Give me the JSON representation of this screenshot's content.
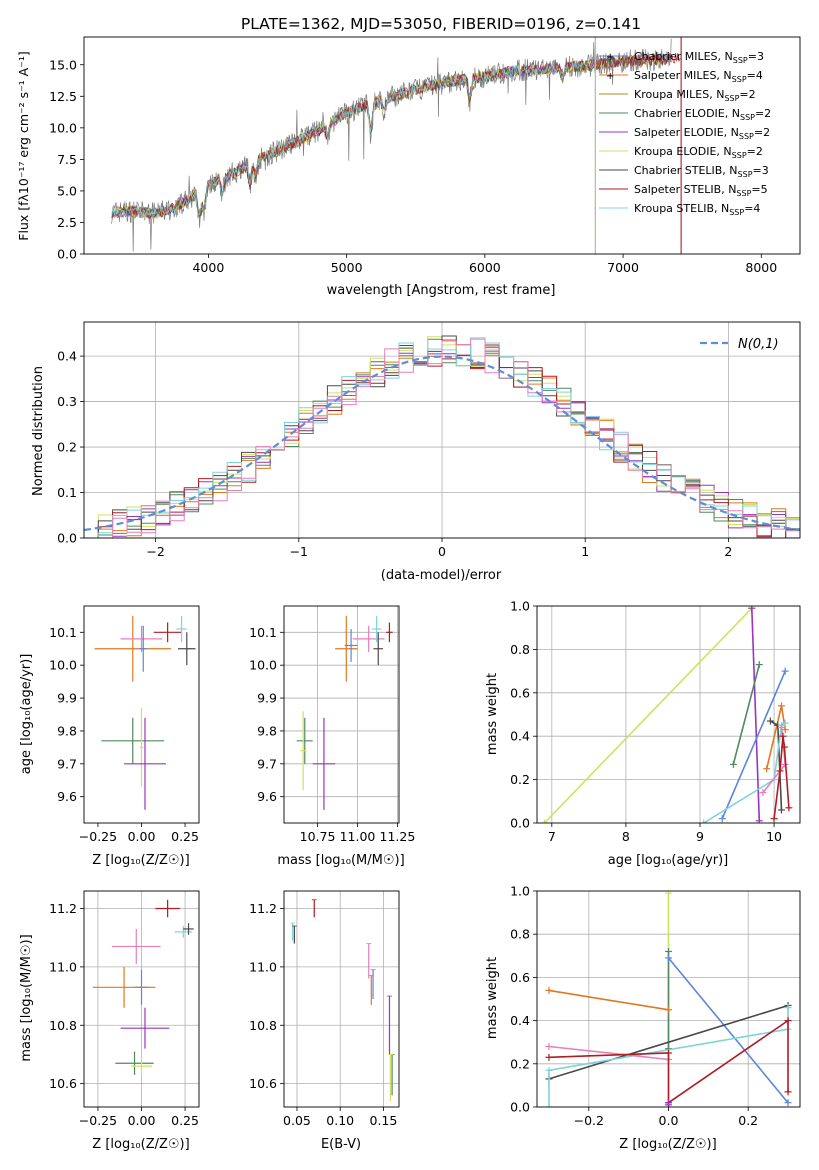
{
  "title": "PLATE=1362, MJD=53050, FIBERID=0196, z=0.141",
  "colors": {
    "Chabrier MILES": "#5a87d6",
    "Salpeter MILES": "#e07820",
    "Kroupa MILES": "#b58a1a",
    "Chabrier ELODIE": "#4f8a5a",
    "Salpeter ELODIE": "#9a34c0",
    "Kroupa ELODIE": "#cfe260",
    "Chabrier STELIB": "#4a4a4a",
    "Salpeter STELIB": "#b01c22",
    "Kroupa STELIB": "#7fd3dc",
    "Pink": "#e87fb8",
    "Normal": "#5a8fd8"
  },
  "chart_data": [
    {
      "id": "spectrum",
      "type": "line",
      "xlabel": "wavelength [Angstrom, rest frame]",
      "ylabel": "Flux [fλ10⁻¹⁷ erg cm⁻² s⁻¹ A⁻¹]",
      "xlim": [
        3100,
        8280
      ],
      "ylim": [
        0,
        17.2
      ],
      "xticks": [
        4000,
        5000,
        6000,
        7000,
        8000
      ],
      "yticks": [
        0.0,
        2.5,
        5.0,
        7.5,
        10.0,
        12.5,
        15.0
      ],
      "legend_position": "right",
      "legend": [
        "Chabrier MILES, N_SSP=3",
        "Salpeter MILES, N_SSP=4",
        "Kroupa MILES, N_SSP=2",
        "Chabrier ELODIE, N_SSP=2",
        "Salpeter ELODIE, N_SSP=2",
        "Kroupa ELODIE, N_SSP=2",
        "Chabrier STELIB, N_SSP=3",
        "Salpeter STELIB, N_SSP=5",
        "Kroupa STELIB, N_SSP=4"
      ],
      "legend_keys": [
        "Chabrier MILES",
        "Salpeter MILES",
        "Kroupa MILES",
        "Chabrier ELODIE",
        "Salpeter ELODIE",
        "Kroupa ELODIE",
        "Chabrier STELIB",
        "Salpeter STELIB",
        "Kroupa STELIB"
      ],
      "continuum": [
        [
          3300,
          3.3
        ],
        [
          3450,
          3.4
        ],
        [
          3600,
          3.2
        ],
        [
          3750,
          3.6
        ],
        [
          3850,
          4.3
        ],
        [
          3950,
          5.0
        ],
        [
          4050,
          5.8
        ],
        [
          4200,
          6.5
        ],
        [
          4400,
          7.7
        ],
        [
          4600,
          8.7
        ],
        [
          4800,
          9.8
        ],
        [
          5000,
          11.2
        ],
        [
          5200,
          12.0
        ],
        [
          5400,
          12.7
        ],
        [
          5600,
          13.3
        ],
        [
          5800,
          13.8
        ],
        [
          6000,
          14.0
        ],
        [
          6200,
          14.5
        ],
        [
          6400,
          14.6
        ],
        [
          6600,
          14.8
        ],
        [
          6800,
          15.0
        ],
        [
          7000,
          15.3
        ],
        [
          7200,
          15.4
        ],
        [
          7350,
          15.5
        ]
      ],
      "cutoffs": [
        {
          "x": 6800,
          "color_key": "Kroupa MILES"
        },
        {
          "x": 6800,
          "color_key": "Kroupa STELIB"
        },
        {
          "x": 7420,
          "color_key": "Salpeter STELIB"
        }
      ]
    },
    {
      "id": "residual_histogram",
      "type": "line",
      "xlabel": "(data-model)/error",
      "ylabel": "Normed distribution",
      "xlim": [
        -2.5,
        2.5
      ],
      "ylim": [
        0,
        0.475
      ],
      "xticks": [
        -2,
        -1,
        0,
        1,
        2
      ],
      "yticks": [
        0.0,
        0.1,
        0.2,
        0.3,
        0.4
      ],
      "grid": true,
      "legend_position": "top-right",
      "legend": [
        "N(0,1)"
      ],
      "bin_width": 0.1
    },
    {
      "id": "age_vs_Z",
      "type": "scatter",
      "xlabel": "Z [log₁₀(Z/Z☉)]",
      "ylabel": "age  [log₁₀(age/yr)]",
      "xlim": [
        -0.33,
        0.33
      ],
      "ylim": [
        9.52,
        10.18
      ],
      "xticks": [
        -0.25,
        0.0,
        0.25
      ],
      "yticks": [
        9.6,
        9.7,
        9.8,
        9.9,
        10.0,
        10.1
      ],
      "grid": false,
      "points": [
        {
          "c": "Salpeter MILES",
          "x": -0.05,
          "y": 10.05,
          "xerr": 0.22,
          "yerr": 0.1
        },
        {
          "c": "Pink",
          "x": 0.0,
          "y": 10.08,
          "xerr": 0.12,
          "yerr": 0.04
        },
        {
          "c": "Chabrier MILES",
          "x": 0.01,
          "y": 10.05,
          "xerr": 0.02,
          "yerr": 0.07
        },
        {
          "c": "Salpeter STELIB",
          "x": 0.15,
          "y": 10.1,
          "xerr": 0.08,
          "yerr": 0.03
        },
        {
          "c": "Kroupa STELIB",
          "x": 0.23,
          "y": 10.11,
          "xerr": 0.03,
          "yerr": 0.04
        },
        {
          "c": "Chabrier STELIB",
          "x": 0.26,
          "y": 10.05,
          "xerr": 0.05,
          "yerr": 0.05
        },
        {
          "c": "Chabrier ELODIE",
          "x": -0.05,
          "y": 9.77,
          "xerr": 0.18,
          "yerr": 0.07
        },
        {
          "c": "Kroupa ELODIE",
          "x": 0.0,
          "y": 9.75,
          "xerr": 0.01,
          "yerr": 0.12
        },
        {
          "c": "Salpeter ELODIE",
          "x": 0.02,
          "y": 9.7,
          "xerr": 0.12,
          "yerr": 0.14
        }
      ]
    },
    {
      "id": "age_vs_mass",
      "type": "scatter",
      "xlabel": "mass [log₁₀(M/M☉)]",
      "ylabel": "",
      "xlim": [
        10.54,
        11.26
      ],
      "ylim": [
        9.52,
        10.18
      ],
      "xticks": [
        10.75,
        11.0,
        11.25
      ],
      "yticks": [
        9.6,
        9.7,
        9.8,
        9.9,
        10.0,
        10.1
      ],
      "grid": true,
      "points": [
        {
          "c": "Salpeter MILES",
          "x": 10.93,
          "y": 10.05,
          "xerr": 0.07,
          "yerr": 0.1
        },
        {
          "c": "Chabrier MILES",
          "x": 10.96,
          "y": 10.06,
          "xerr": 0.04,
          "yerr": 0.05
        },
        {
          "c": "Pink",
          "x": 11.07,
          "y": 10.08,
          "xerr": 0.1,
          "yerr": 0.04
        },
        {
          "c": "Kroupa STELIB",
          "x": 11.12,
          "y": 10.11,
          "xerr": 0.03,
          "yerr": 0.04
        },
        {
          "c": "Chabrier STELIB",
          "x": 11.13,
          "y": 10.05,
          "xerr": 0.03,
          "yerr": 0.05
        },
        {
          "c": "Salpeter STELIB",
          "x": 11.2,
          "y": 10.1,
          "xerr": 0.02,
          "yerr": 0.03
        },
        {
          "c": "Chabrier ELODIE",
          "x": 10.67,
          "y": 9.77,
          "xerr": 0.05,
          "yerr": 0.07
        },
        {
          "c": "Kroupa ELODIE",
          "x": 10.66,
          "y": 9.74,
          "xerr": 0.02,
          "yerr": 0.12
        },
        {
          "c": "Salpeter ELODIE",
          "x": 10.79,
          "y": 9.7,
          "xerr": 0.07,
          "yerr": 0.14
        }
      ]
    },
    {
      "id": "massweight_vs_age",
      "type": "line",
      "xlabel": "age  [log₁₀(age/yr)]",
      "ylabel": "mass weight",
      "xlim": [
        6.8,
        10.35
      ],
      "ylim": [
        0,
        1
      ],
      "xticks": [
        7,
        8,
        9,
        10
      ],
      "yticks": [
        0.0,
        0.2,
        0.4,
        0.6,
        0.8,
        1.0
      ],
      "grid": true,
      "series": [
        {
          "c": "Kroupa ELODIE",
          "points": [
            [
              6.9,
              0.0
            ],
            [
              9.7,
              0.99
            ]
          ]
        },
        {
          "c": "Salpeter ELODIE",
          "points": [
            [
              9.7,
              0.99
            ],
            [
              9.8,
              0.01
            ]
          ]
        },
        {
          "c": "Chabrier MILES",
          "points": [
            [
              9.3,
              0.02
            ],
            [
              10.15,
              0.7
            ]
          ]
        },
        {
          "c": "Chabrier ELODIE",
          "points": [
            [
              9.45,
              0.27
            ],
            [
              9.8,
              0.73
            ]
          ]
        },
        {
          "c": "Salpeter MILES",
          "points": [
            [
              9.9,
              0.25
            ],
            [
              10.1,
              0.54
            ],
            [
              10.15,
              0.43
            ]
          ]
        },
        {
          "c": "Chabrier STELIB",
          "points": [
            [
              9.95,
              0.47
            ],
            [
              10.05,
              0.45
            ],
            [
              10.1,
              0.06
            ]
          ]
        },
        {
          "c": "Kroupa STELIB",
          "points": [
            [
              9.05,
              0.0
            ],
            [
              10.0,
              0.2
            ],
            [
              10.1,
              0.45
            ],
            [
              10.15,
              0.46
            ]
          ]
        },
        {
          "c": "Pink",
          "points": [
            [
              9.85,
              0.14
            ],
            [
              10.15,
              0.27
            ],
            [
              10.1,
              0.44
            ]
          ]
        },
        {
          "c": "Salpeter STELIB",
          "points": [
            [
              10.0,
              0.02
            ],
            [
              10.08,
              0.24
            ],
            [
              10.12,
              0.4
            ],
            [
              10.14,
              0.35
            ],
            [
              10.2,
              0.07
            ]
          ]
        }
      ]
    },
    {
      "id": "mass_vs_Z",
      "type": "scatter",
      "xlabel": "Z [log₁₀(Z/Z☉)]",
      "ylabel": "mass [log₁₀(M/M☉)]",
      "xlim": [
        -0.33,
        0.33
      ],
      "ylim": [
        10.52,
        11.26
      ],
      "xticks": [
        -0.25,
        0.0,
        0.25
      ],
      "yticks": [
        10.6,
        10.8,
        11.0,
        11.2
      ],
      "grid": true,
      "points": [
        {
          "c": "Salpeter STELIB",
          "x": 0.15,
          "y": 11.2,
          "xerr": 0.07,
          "yerr": 0.03
        },
        {
          "c": "Kroupa STELIB",
          "x": 0.24,
          "y": 11.12,
          "xerr": 0.05,
          "yerr": 0.02
        },
        {
          "c": "Chabrier STELIB",
          "x": 0.27,
          "y": 11.13,
          "xerr": 0.03,
          "yerr": 0.02
        },
        {
          "c": "Pink",
          "x": -0.03,
          "y": 11.07,
          "xerr": 0.14,
          "yerr": 0.06
        },
        {
          "c": "Chabrier MILES",
          "x": 0.0,
          "y": 10.93,
          "xerr": 0.04,
          "yerr": 0.06
        },
        {
          "c": "Salpeter MILES",
          "x": -0.1,
          "y": 10.93,
          "xerr": 0.18,
          "yerr": 0.07
        },
        {
          "c": "Salpeter ELODIE",
          "x": 0.02,
          "y": 10.79,
          "xerr": 0.14,
          "yerr": 0.07
        },
        {
          "c": "Chabrier ELODIE",
          "x": -0.04,
          "y": 10.67,
          "xerr": 0.11,
          "yerr": 0.04
        },
        {
          "c": "Kroupa ELODIE",
          "x": 0.0,
          "y": 10.66,
          "xerr": 0.06,
          "yerr": 0.03
        }
      ]
    },
    {
      "id": "mass_vs_ebv",
      "type": "scatter",
      "xlabel": "E(B-V)",
      "ylabel": "",
      "xlim": [
        0.035,
        0.168
      ],
      "ylim": [
        10.52,
        11.26
      ],
      "xticks": [
        0.05,
        0.1,
        0.15
      ],
      "yticks": [
        10.6,
        10.8,
        11.0,
        11.2
      ],
      "grid": true,
      "points": [
        {
          "c": "Salpeter STELIB",
          "x": 0.07,
          "y": 11.2,
          "xerr": 0.0,
          "yerr": 0.03
        },
        {
          "c": "Kroupa STELIB",
          "x": 0.045,
          "y": 11.12,
          "xerr": 0.0,
          "yerr": 0.03
        },
        {
          "c": "Chabrier STELIB",
          "x": 0.047,
          "y": 11.11,
          "xerr": 0.0,
          "yerr": 0.03
        },
        {
          "c": "Pink",
          "x": 0.133,
          "y": 11.02,
          "xerr": 0.0,
          "yerr": 0.06
        },
        {
          "c": "Chabrier MILES",
          "x": 0.138,
          "y": 10.94,
          "xerr": 0.0,
          "yerr": 0.05
        },
        {
          "c": "Salpeter MILES",
          "x": 0.136,
          "y": 10.92,
          "xerr": 0.0,
          "yerr": 0.05
        },
        {
          "c": "Salpeter ELODIE",
          "x": 0.157,
          "y": 10.8,
          "xerr": 0.0,
          "yerr": 0.1
        },
        {
          "c": "Chabrier ELODIE",
          "x": 0.16,
          "y": 10.63,
          "xerr": 0.0,
          "yerr": 0.07
        },
        {
          "c": "Kroupa ELODIE",
          "x": 0.158,
          "y": 10.62,
          "xerr": 0.0,
          "yerr": 0.08
        }
      ]
    },
    {
      "id": "massweight_vs_Z",
      "type": "line",
      "xlabel": "Z [log₁₀(Z/Z☉)]",
      "ylabel": "mass weight",
      "xlim": [
        -0.33,
        0.33
      ],
      "ylim": [
        0,
        1
      ],
      "xticks": [
        -0.2,
        0.0,
        0.2
      ],
      "yticks": [
        0.0,
        0.2,
        0.4,
        0.6,
        0.8,
        1.0
      ],
      "grid": true,
      "series": [
        {
          "c": "Kroupa ELODIE",
          "points": [
            [
              0.0,
              0.99
            ],
            [
              0.0,
              0.0
            ]
          ]
        },
        {
          "c": "Chabrier ELODIE",
          "points": [
            [
              0.0,
              0.72
            ],
            [
              0.0,
              0.27
            ]
          ]
        },
        {
          "c": "Chabrier MILES",
          "points": [
            [
              0.0,
              0.69
            ],
            [
              0.3,
              0.02
            ]
          ]
        },
        {
          "c": "Salpeter MILES",
          "points": [
            [
              -0.3,
              0.54
            ],
            [
              0.0,
              0.45
            ]
          ]
        },
        {
          "c": "Chabrier STELIB",
          "points": [
            [
              -0.3,
              0.13
            ],
            [
              0.3,
              0.47
            ]
          ]
        },
        {
          "c": "Kroupa STELIB",
          "points": [
            [
              -0.3,
              0.0
            ],
            [
              -0.3,
              0.17
            ],
            [
              0.3,
              0.36
            ],
            [
              0.3,
              0.46
            ]
          ]
        },
        {
          "c": "Pink",
          "points": [
            [
              -0.3,
              0.28
            ],
            [
              0.0,
              0.22
            ]
          ]
        },
        {
          "c": "Salpeter STELIB",
          "points": [
            [
              -0.3,
              0.23
            ],
            [
              0.0,
              0.25
            ],
            [
              0.0,
              0.02
            ],
            [
              0.3,
              0.4
            ],
            [
              0.3,
              0.07
            ]
          ]
        },
        {
          "c": "Salpeter ELODIE",
          "points": [
            [
              0.0,
              0.01
            ],
            [
              0.0,
              0.02
            ]
          ]
        }
      ]
    }
  ]
}
